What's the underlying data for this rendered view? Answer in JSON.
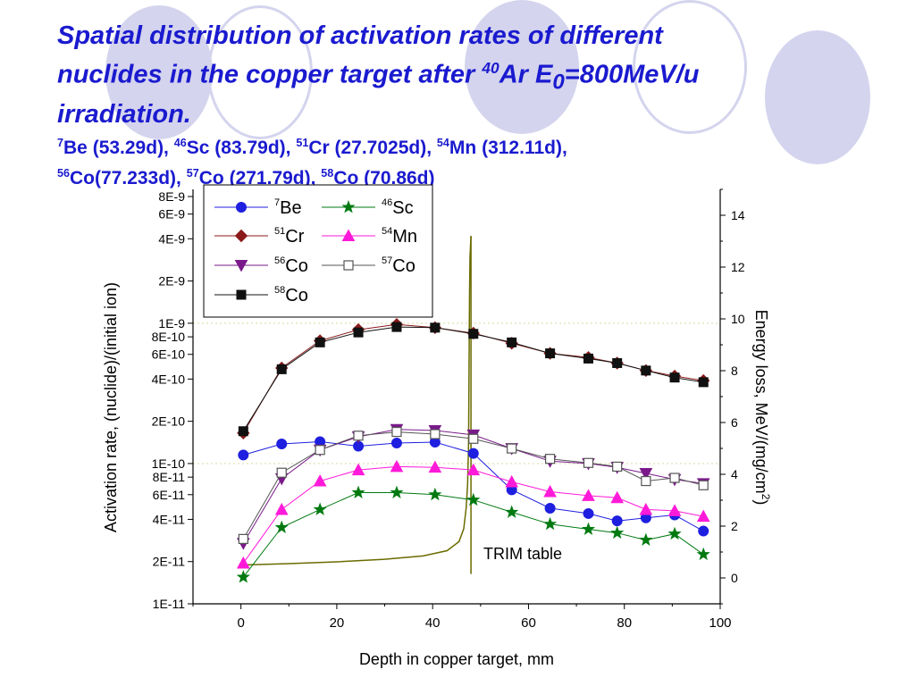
{
  "title": {
    "line1": "Spatial distribution of activation rates of different",
    "line2a": "nuclides in the copper target after ",
    "line2_sup": "40",
    "line2b": "Ar  E",
    "line2_sub": "0",
    "line2c": "=800MeV/u",
    "line3": "irradiation.",
    "half_lives": [
      {
        "mass": "7",
        "text": "Be (53.29d), "
      },
      {
        "mass": "46",
        "text": "Sc (83.79d), "
      },
      {
        "mass": "51",
        "text": "Cr (27.7025d), "
      },
      {
        "mass": "54",
        "text": "Mn (312.11d),"
      },
      {
        "mass": "56",
        "text": "Co(77.233d), "
      },
      {
        "mass": "57",
        "text": "Co (271.79d), "
      },
      {
        "mass": "58",
        "text": "Co (70.86d)"
      }
    ]
  },
  "chart_data": {
    "type": "scatter",
    "xlabel": "Depth in copper target, mm",
    "ylabel": "Activation rate, (nuclide)/(initial ion)",
    "y2label_main": "Energy loss, MeV/(mg/cm",
    "y2label_sup": "2",
    "y2label_end": ")",
    "xlim": [
      -10,
      100
    ],
    "ylim": [
      1e-11,
      9e-09
    ],
    "yscale": "log",
    "y2lim": [
      -1,
      15
    ],
    "xticks": [
      "0",
      "20",
      "40",
      "60",
      "80",
      "100"
    ],
    "yticks": [
      {
        "v": 1e-11,
        "label": "1E-11"
      },
      {
        "v": 2e-11,
        "label": "2E-11"
      },
      {
        "v": 4e-11,
        "label": "4E-11"
      },
      {
        "v": 6e-11,
        "label": "6E-11"
      },
      {
        "v": 8e-11,
        "label": "8E-11"
      },
      {
        "v": 1e-10,
        "label": "1E-10"
      },
      {
        "v": 2e-10,
        "label": "2E-10"
      },
      {
        "v": 4e-10,
        "label": "4E-10"
      },
      {
        "v": 6e-10,
        "label": "6E-10"
      },
      {
        "v": 8e-10,
        "label": "8E-10"
      },
      {
        "v": 1e-09,
        "label": "1E-9"
      },
      {
        "v": 2e-09,
        "label": "2E-9"
      },
      {
        "v": 4e-09,
        "label": "4E-9"
      },
      {
        "v": 6e-09,
        "label": "6E-9"
      },
      {
        "v": 8e-09,
        "label": "8E-9"
      }
    ],
    "y2ticks": [
      "0",
      "2",
      "4",
      "6",
      "8",
      "10",
      "12",
      "14"
    ],
    "legend_position": "top-left",
    "annotation": "TRIM table",
    "x": [
      0.5,
      8.5,
      16.5,
      24.5,
      32.5,
      40.5,
      48.5,
      56.5,
      64.5,
      72.5,
      78.5,
      84.5,
      90.5,
      96.5
    ],
    "series": [
      {
        "name": "Be",
        "mass": "7",
        "color": "#1f1fe0",
        "marker": "circle",
        "values": [
          1.15e-10,
          1.38e-10,
          1.43e-10,
          1.33e-10,
          1.4e-10,
          1.42e-10,
          1.18e-10,
          6.5e-11,
          4.8e-11,
          4.4e-11,
          3.9e-11,
          4.1e-11,
          4.3e-11,
          3.3e-11
        ]
      },
      {
        "name": "Sc",
        "mass": "46",
        "color": "#007a10",
        "marker": "star",
        "values": [
          1.55e-11,
          3.5e-11,
          4.7e-11,
          6.2e-11,
          6.2e-11,
          6e-11,
          5.5e-11,
          4.5e-11,
          3.7e-11,
          3.4e-11,
          3.2e-11,
          2.85e-11,
          3.15e-11,
          2.25e-11
        ]
      },
      {
        "name": "Cr",
        "mass": "51",
        "color": "#8b1a1a",
        "marker": "diamond",
        "values": [
          1.65e-10,
          4.8e-10,
          7.5e-10,
          9e-10,
          9.8e-10,
          9.3e-10,
          8.5e-10,
          7.2e-10,
          6.1e-10,
          5.7e-10,
          5.2e-10,
          4.6e-10,
          4.2e-10,
          3.9e-10
        ]
      },
      {
        "name": "Mn",
        "mass": "54",
        "color": "#ff1ad9",
        "marker": "triangle-up",
        "values": [
          1.95e-11,
          4.7e-11,
          7.5e-11,
          9e-11,
          9.5e-11,
          9.4e-11,
          9e-11,
          7.4e-11,
          6.3e-11,
          5.9e-11,
          5.7e-11,
          4.7e-11,
          4.6e-11,
          4.2e-11
        ]
      },
      {
        "name": "Co",
        "mass": "56",
        "color": "#7a1a8a",
        "marker": "triangle-down",
        "values": [
          2.7e-11,
          7.8e-11,
          1.25e-10,
          1.55e-10,
          1.75e-10,
          1.72e-10,
          1.6e-10,
          1.28e-10,
          1.04e-10,
          1e-10,
          9.4e-11,
          8.5e-11,
          7.7e-11,
          7.2e-11
        ]
      },
      {
        "name": "Co",
        "mass": "57",
        "color": "#555555",
        "marker": "square-open",
        "values": [
          2.9e-11,
          8.6e-11,
          1.25e-10,
          1.58e-10,
          1.68e-10,
          1.62e-10,
          1.5e-10,
          1.28e-10,
          1.08e-10,
          1.01e-10,
          9.5e-11,
          7.5e-11,
          7.9e-11,
          7e-11
        ]
      },
      {
        "name": "Co",
        "mass": "58",
        "color": "#111111",
        "marker": "square",
        "values": [
          1.7e-10,
          4.7e-10,
          7.3e-10,
          8.6e-10,
          9.4e-10,
          9.3e-10,
          8.4e-10,
          7.3e-10,
          6.1e-10,
          5.6e-10,
          5.2e-10,
          4.6e-10,
          4.1e-10,
          3.8e-10
        ]
      }
    ],
    "energy_loss": {
      "name": "TRIM table",
      "color": "#6b6b00",
      "x": [
        0.5,
        10,
        20,
        30,
        38,
        43,
        45.5,
        46.5,
        47.0,
        47.3,
        47.5,
        47.6,
        47.7,
        47.8,
        48.0
      ],
      "y": [
        0.5,
        0.55,
        0.62,
        0.72,
        0.85,
        1.05,
        1.4,
        1.9,
        2.7,
        3.6,
        5.2,
        8.0,
        11.0,
        12.4,
        13.2
      ]
    }
  }
}
